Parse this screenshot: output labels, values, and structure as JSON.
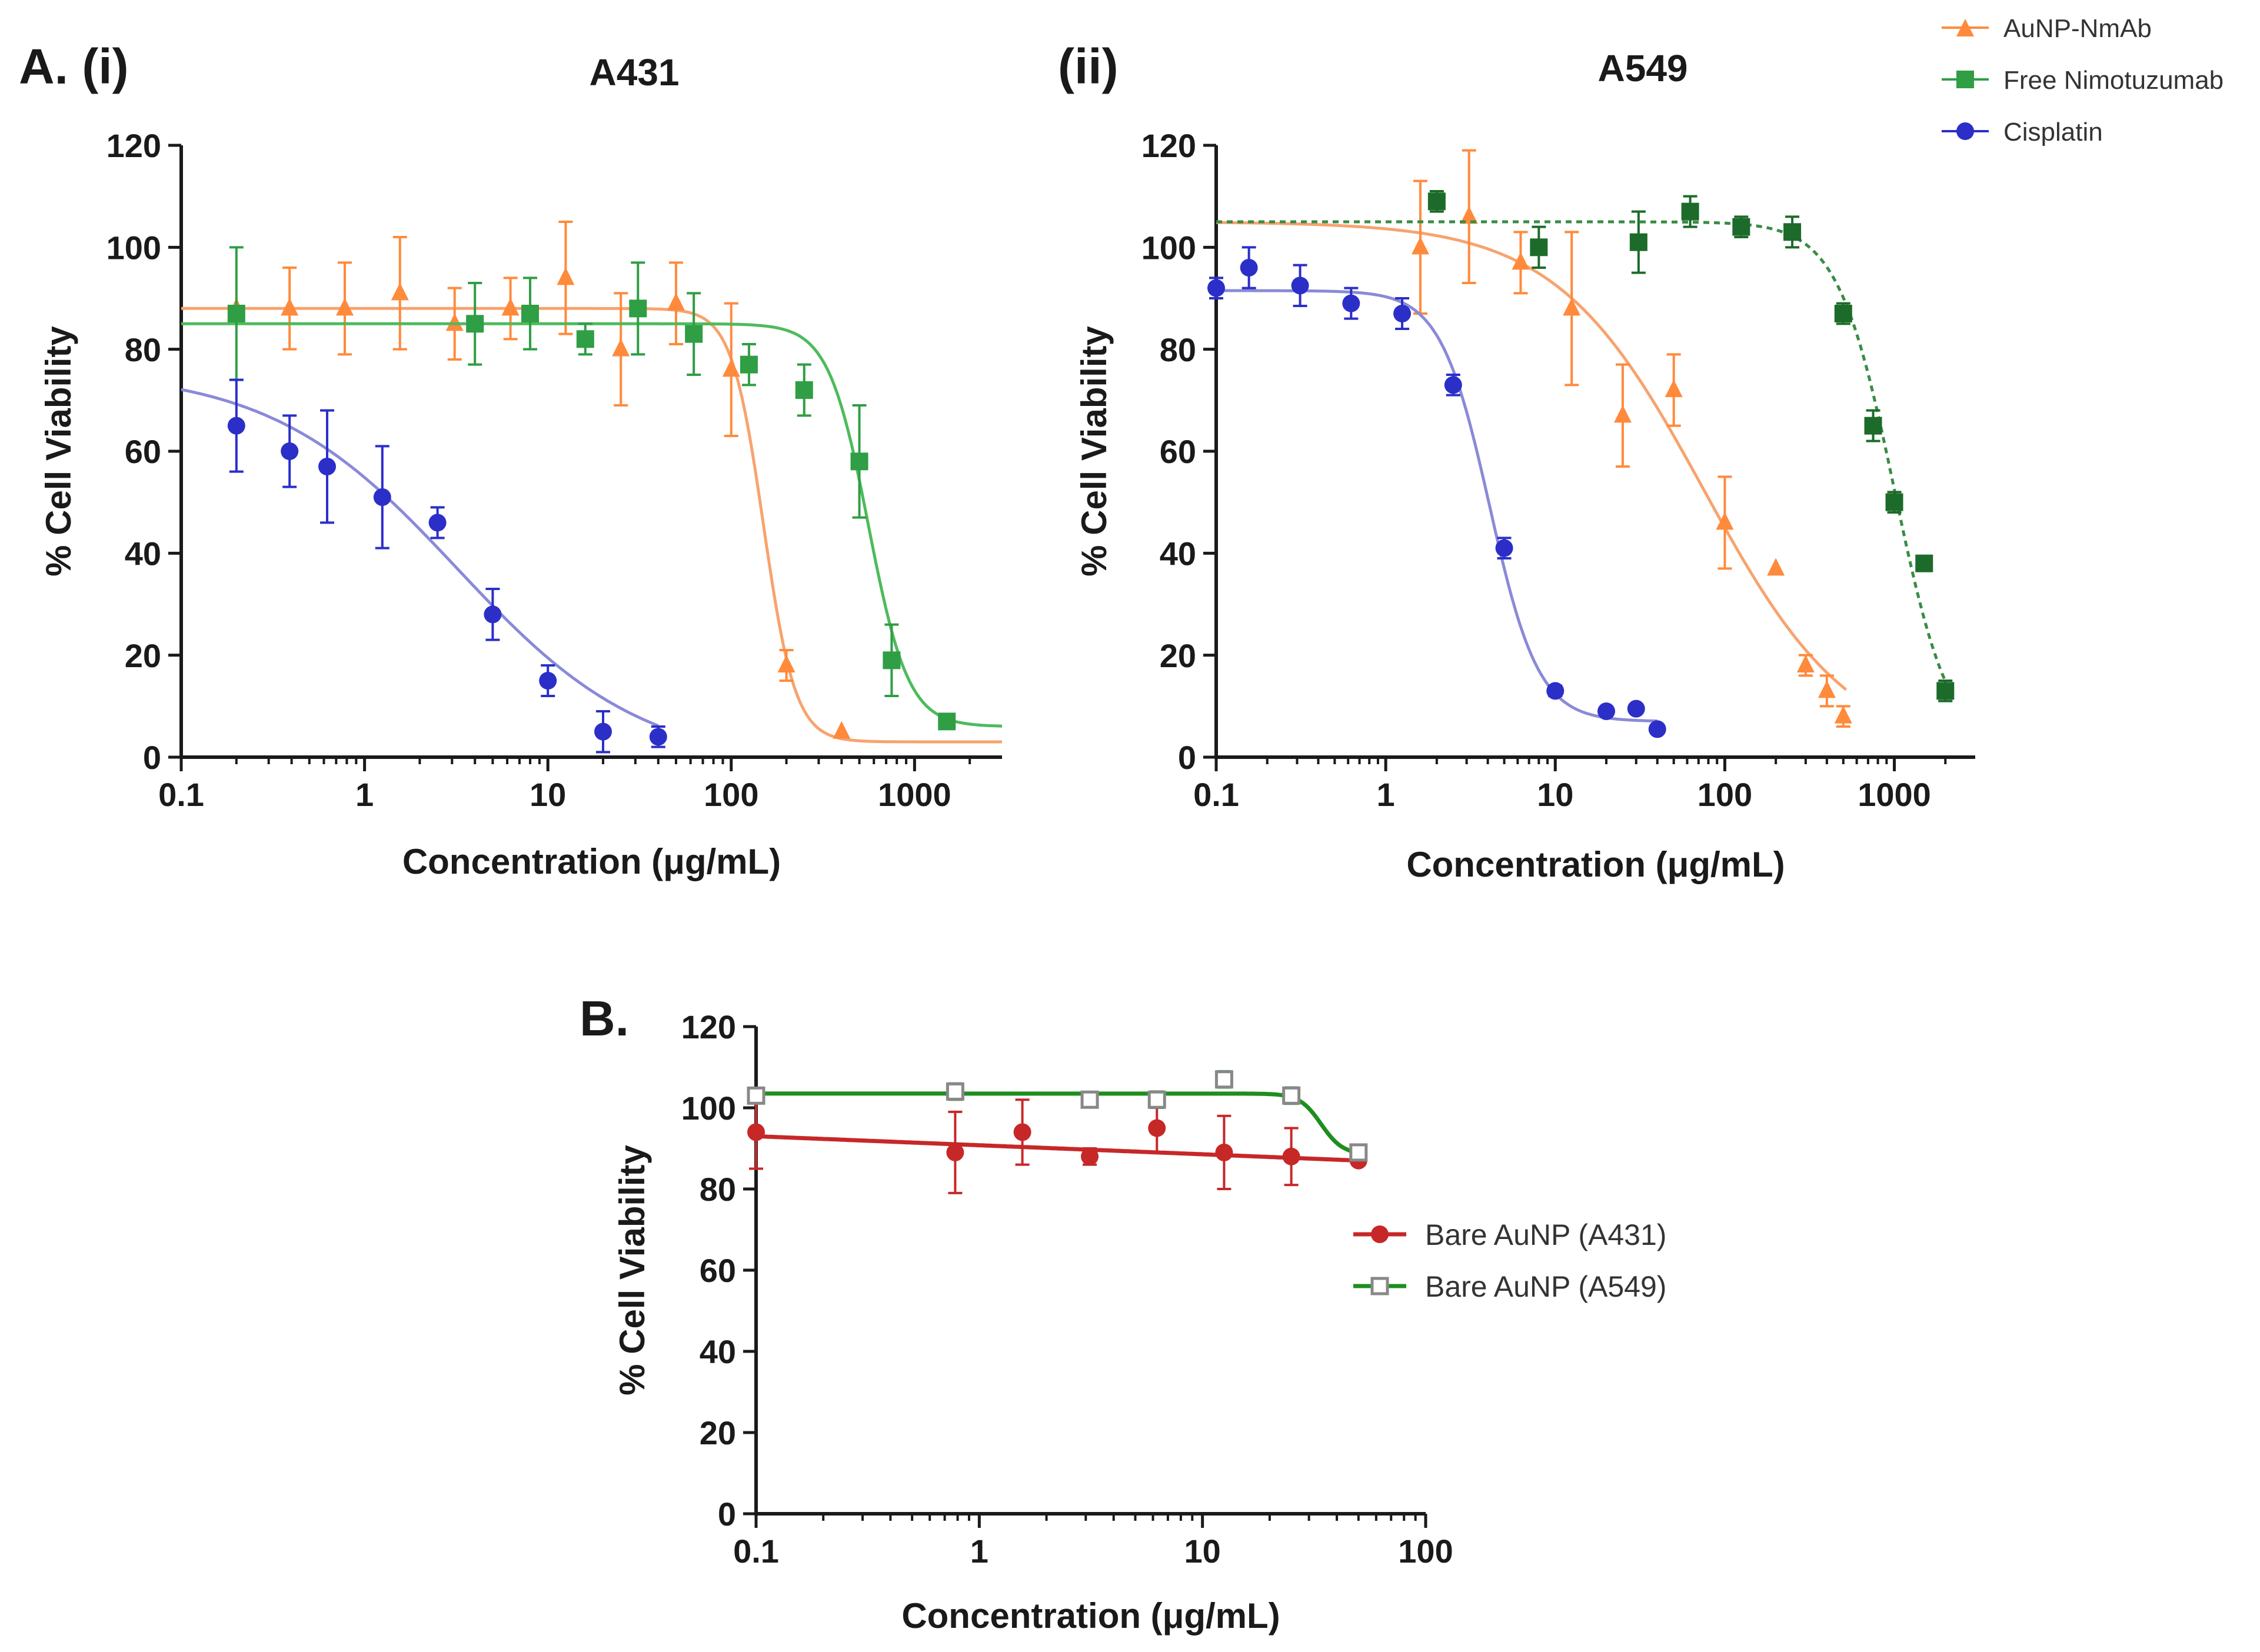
{
  "panels": {
    "a_label": "A. (i)",
    "a2_label": "(ii)",
    "b_label": "B."
  },
  "legend_a": [
    {
      "label": "AuNP-NmAb",
      "color": "#ff8a3c",
      "marker": "triangle"
    },
    {
      "label": "Free Nimotuzumab",
      "color": "#2f9e44",
      "marker": "square"
    },
    {
      "label": "Cisplatin",
      "color": "#2b2fc8",
      "marker": "circle"
    }
  ],
  "legend_b": [
    {
      "label": "Bare AuNP (A431)",
      "color": "#c62828",
      "marker": "circle"
    },
    {
      "label": "Bare AuNP (A549)",
      "color": "#1e8e1e",
      "marker": "open-square"
    }
  ],
  "chart_data": [
    {
      "id": "a431",
      "type": "scatter",
      "title": "A431",
      "xlabel": "Concentration (μg/mL)",
      "ylabel": "% Cell Viability",
      "xscale": "log",
      "xlim": [
        0.1,
        3000
      ],
      "ylim": [
        0,
        120
      ],
      "xticks": [
        "0.1",
        "1",
        "10",
        "100",
        "1000"
      ],
      "yticks": [
        "0",
        "20",
        "40",
        "60",
        "80",
        "100",
        "120"
      ],
      "series": [
        {
          "name": "AuNP-NmAb",
          "color": "#ff8a3c",
          "fit_color": "#f7a36e",
          "marker": "triangle",
          "fit_style": "solid",
          "fit": {
            "top": 88,
            "bottom": 3,
            "ec50": 150,
            "hill": 5
          },
          "points": [
            {
              "x": 0.2,
              "y": 88,
              "err": 0
            },
            {
              "x": 0.39,
              "y": 88,
              "err": 8
            },
            {
              "x": 0.78,
              "y": 88,
              "err": 9
            },
            {
              "x": 1.56,
              "y": 91,
              "err": 11
            },
            {
              "x": 3.1,
              "y": 85,
              "err": 7
            },
            {
              "x": 6.25,
              "y": 88,
              "err": 6
            },
            {
              "x": 12.5,
              "y": 94,
              "err": 11
            },
            {
              "x": 25,
              "y": 80,
              "err": 11
            },
            {
              "x": 50,
              "y": 89,
              "err": 8
            },
            {
              "x": 100,
              "y": 76,
              "err": 13
            },
            {
              "x": 200,
              "y": 18,
              "err": 3
            },
            {
              "x": 400,
              "y": 5,
              "err": 0
            }
          ]
        },
        {
          "name": "Free Nimotuzumab",
          "color": "#2f9e44",
          "fit_color": "#4dbb5c",
          "marker": "square",
          "fit_style": "solid",
          "fit": {
            "top": 85,
            "bottom": 6,
            "ec50": 560,
            "hill": 4
          },
          "points": [
            {
              "x": 0.2,
              "y": 87,
              "err": 13
            },
            {
              "x": 4,
              "y": 85,
              "err": 8
            },
            {
              "x": 8,
              "y": 87,
              "err": 7
            },
            {
              "x": 16,
              "y": 82,
              "err": 3
            },
            {
              "x": 31,
              "y": 88,
              "err": 9
            },
            {
              "x": 62.5,
              "y": 83,
              "err": 8
            },
            {
              "x": 125,
              "y": 77,
              "err": 4
            },
            {
              "x": 250,
              "y": 72,
              "err": 5
            },
            {
              "x": 500,
              "y": 58,
              "err": 11
            },
            {
              "x": 750,
              "y": 19,
              "err": 7
            },
            {
              "x": 1500,
              "y": 7,
              "err": 1
            }
          ]
        },
        {
          "name": "Cisplatin",
          "color": "#2b2fc8",
          "fit_color": "#8a8ad8",
          "marker": "circle",
          "fit_style": "solid",
          "fit": {
            "top": 76,
            "bottom": -2,
            "ec50": 3.2,
            "hill": 0.85
          },
          "fit_range": [
            0.1,
            40
          ],
          "points": [
            {
              "x": 0.2,
              "y": 65,
              "err": 9
            },
            {
              "x": 0.39,
              "y": 60,
              "err": 7
            },
            {
              "x": 0.625,
              "y": 57,
              "err": 11
            },
            {
              "x": 1.25,
              "y": 51,
              "err": 10
            },
            {
              "x": 2.5,
              "y": 46,
              "err": 3
            },
            {
              "x": 5,
              "y": 28,
              "err": 5
            },
            {
              "x": 10,
              "y": 15,
              "err": 3
            },
            {
              "x": 20,
              "y": 5,
              "err": 4
            },
            {
              "x": 40,
              "y": 4,
              "err": 2
            }
          ]
        }
      ]
    },
    {
      "id": "a549",
      "type": "scatter",
      "title": "A549",
      "xlabel": "Concentration (μg/mL)",
      "ylabel": "% Cell Viability",
      "xscale": "log",
      "xlim": [
        0.1,
        3000
      ],
      "ylim": [
        0,
        120
      ],
      "xticks": [
        "0.1",
        "1",
        "10",
        "100",
        "1000"
      ],
      "yticks": [
        "0",
        "20",
        "40",
        "60",
        "80",
        "100",
        "120"
      ],
      "series": [
        {
          "name": "AuNP-NmAb",
          "color": "#ff8a3c",
          "fit_color": "#f7a36e",
          "marker": "triangle",
          "fit_style": "solid",
          "fit": {
            "top": 105,
            "bottom": 0,
            "ec50": 75,
            "hill": 1
          },
          "fit_range": [
            0.1,
            520
          ],
          "points": [
            {
              "x": 1.6,
              "y": 100,
              "err": 13
            },
            {
              "x": 3.1,
              "y": 106,
              "err": 13
            },
            {
              "x": 6.25,
              "y": 97,
              "err": 6
            },
            {
              "x": 12.5,
              "y": 88,
              "err": 15
            },
            {
              "x": 25,
              "y": 67,
              "err": 10
            },
            {
              "x": 50,
              "y": 72,
              "err": 7
            },
            {
              "x": 100,
              "y": 46,
              "err": 9
            },
            {
              "x": 200,
              "y": 37,
              "err": 0
            },
            {
              "x": 300,
              "y": 18,
              "err": 2
            },
            {
              "x": 400,
              "y": 13,
              "err": 3
            },
            {
              "x": 500,
              "y": 8,
              "err": 2
            }
          ]
        },
        {
          "name": "Free Nimotuzumab",
          "color": "#1c6b2a",
          "fit_color": "#3a8c45",
          "marker": "square",
          "fit_style": "dotted",
          "fit": {
            "top": 105,
            "bottom": 0,
            "ec50": 1000,
            "hill": 2.6
          },
          "fit_range": [
            0.1,
            2000
          ],
          "points": [
            {
              "x": 2,
              "y": 109,
              "err": 2
            },
            {
              "x": 8,
              "y": 100,
              "err": 4
            },
            {
              "x": 31,
              "y": 101,
              "err": 6
            },
            {
              "x": 62.5,
              "y": 107,
              "err": 3
            },
            {
              "x": 125,
              "y": 104,
              "err": 2
            },
            {
              "x": 250,
              "y": 103,
              "err": 3
            },
            {
              "x": 500,
              "y": 87,
              "err": 2
            },
            {
              "x": 750,
              "y": 65,
              "err": 3
            },
            {
              "x": 1000,
              "y": 50,
              "err": 2
            },
            {
              "x": 1500,
              "y": 38,
              "err": 0
            },
            {
              "x": 2000,
              "y": 13,
              "err": 2
            }
          ]
        },
        {
          "name": "Cisplatin",
          "color": "#2b2fc8",
          "fit_color": "#8a8ad8",
          "marker": "circle",
          "fit_style": "solid",
          "fit": {
            "top": 91.5,
            "bottom": 7,
            "ec50": 4.1,
            "hill": 3
          },
          "fit_range": [
            0.1,
            40
          ],
          "points": [
            {
              "x": 0.1,
              "y": 92,
              "err": 2
            },
            {
              "x": 0.156,
              "y": 96,
              "err": 4
            },
            {
              "x": 0.3125,
              "y": 92.5,
              "err": 4
            },
            {
              "x": 0.625,
              "y": 89,
              "err": 3
            },
            {
              "x": 1.25,
              "y": 87,
              "err": 3
            },
            {
              "x": 2.5,
              "y": 73,
              "err": 2
            },
            {
              "x": 5,
              "y": 41,
              "err": 2
            },
            {
              "x": 10,
              "y": 13,
              "err": 1
            },
            {
              "x": 20,
              "y": 9,
              "err": 0
            },
            {
              "x": 30,
              "y": 9.5,
              "err": 0
            },
            {
              "x": 40,
              "y": 5.5,
              "err": 0
            }
          ]
        }
      ]
    },
    {
      "id": "bare",
      "type": "scatter",
      "title": "",
      "xlabel": "Concentration (μg/mL)",
      "ylabel": "% Cell Viability",
      "xscale": "log",
      "xlim": [
        0.1,
        100
      ],
      "ylim": [
        0,
        120
      ],
      "xticks": [
        "0.1",
        "1",
        "10",
        "100"
      ],
      "yticks": [
        "0",
        "20",
        "40",
        "60",
        "80",
        "100",
        "120"
      ],
      "series": [
        {
          "name": "Bare AuNP (A431)",
          "color": "#c62828",
          "fit_color": "#c62828",
          "marker": "circle",
          "fit_style": "solid",
          "fit": {
            "linear": true,
            "y0": 93,
            "y1": 87
          },
          "fit_range": [
            0.1,
            50
          ],
          "points": [
            {
              "x": 0.1,
              "y": 94,
              "err": 9
            },
            {
              "x": 0.78,
              "y": 89,
              "err": 10
            },
            {
              "x": 1.56,
              "y": 94,
              "err": 8
            },
            {
              "x": 3.125,
              "y": 88,
              "err": 2
            },
            {
              "x": 6.25,
              "y": 95,
              "err": 6
            },
            {
              "x": 12.5,
              "y": 89,
              "err": 9
            },
            {
              "x": 25,
              "y": 88,
              "err": 7
            },
            {
              "x": 50,
              "y": 87,
              "err": 0
            }
          ]
        },
        {
          "name": "Bare AuNP (A549)",
          "color": "#1e8e1e",
          "fit_color": "#1e8e1e",
          "marker": "open-square",
          "fit_style": "solid",
          "fit": {
            "top": 103.5,
            "bottom": 88.5,
            "ec50": 34,
            "hill": 9
          },
          "fit_range": [
            0.1,
            50
          ],
          "points": [
            {
              "x": 0.1,
              "y": 103,
              "err": 1
            },
            {
              "x": 0.78,
              "y": 104,
              "err": 2
            },
            {
              "x": 3.125,
              "y": 102,
              "err": 1
            },
            {
              "x": 6.25,
              "y": 102,
              "err": 2
            },
            {
              "x": 12.5,
              "y": 107,
              "err": 2
            },
            {
              "x": 25,
              "y": 103,
              "err": 2
            },
            {
              "x": 50,
              "y": 89,
              "err": 1
            }
          ]
        }
      ]
    }
  ]
}
